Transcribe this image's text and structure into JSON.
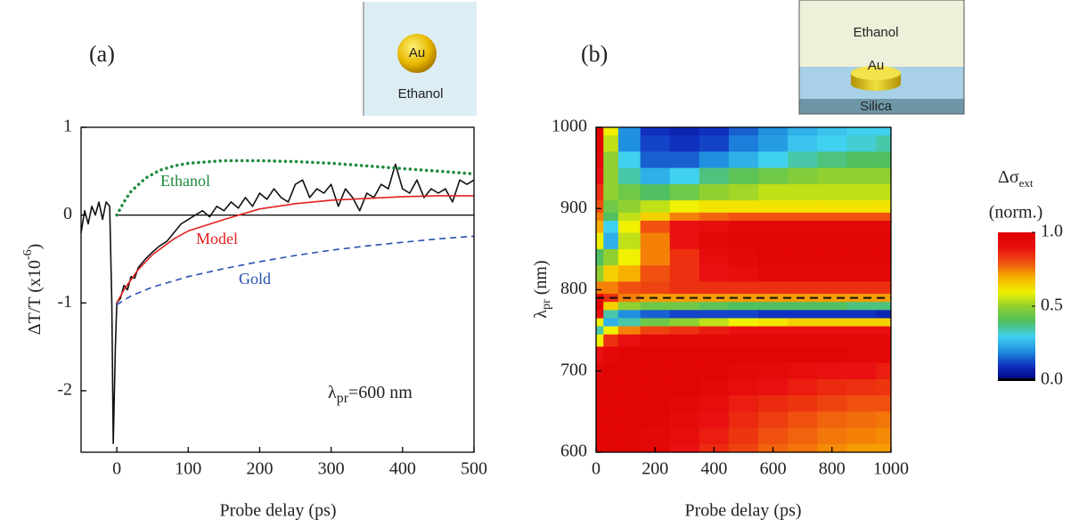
{
  "chart_data": [
    {
      "type": "line",
      "panel_label": "(a)",
      "xlabel": "Probe delay (ps)",
      "ylabel": {
        "text": "ΔT/T (x10",
        "sup": "-6",
        "end": ")"
      },
      "xlim": [
        -50,
        500
      ],
      "ylim": [
        -2.7,
        1
      ],
      "xticks": [
        0,
        100,
        200,
        300,
        400,
        500
      ],
      "yticks": [
        -2,
        -1,
        0,
        1
      ],
      "hline": 0,
      "annotation": {
        "text": "λ",
        "sub": "pr",
        "rest": "=600 nm"
      },
      "inset": {
        "particle": "Au",
        "medium": "Ethanol"
      },
      "series": [
        {
          "color": "#111111",
          "style": "solid",
          "x": [
            -50,
            -45,
            -40,
            -35,
            -30,
            -25,
            -20,
            -15,
            -10,
            -7,
            -5,
            -2,
            0,
            5,
            10,
            15,
            20,
            25,
            30,
            40,
            50,
            60,
            70,
            80,
            90,
            100,
            110,
            120,
            130,
            140,
            150,
            160,
            170,
            180,
            190,
            200,
            210,
            220,
            230,
            240,
            250,
            260,
            270,
            280,
            290,
            300,
            310,
            320,
            330,
            340,
            350,
            360,
            370,
            380,
            390,
            400,
            410,
            420,
            430,
            440,
            450,
            460,
            470,
            480,
            490,
            500
          ],
          "values": [
            -0.2,
            0.05,
            -0.1,
            0.1,
            0.0,
            0.15,
            -0.05,
            0.15,
            0.1,
            -1.0,
            -2.6,
            -1.5,
            -1.0,
            -0.95,
            -0.8,
            -0.85,
            -0.7,
            -0.72,
            -0.6,
            -0.5,
            -0.42,
            -0.35,
            -0.3,
            -0.2,
            -0.1,
            -0.05,
            0.0,
            0.05,
            -0.02,
            0.1,
            0.05,
            0.15,
            0.08,
            0.2,
            0.1,
            0.25,
            0.18,
            0.3,
            0.2,
            0.15,
            0.35,
            0.4,
            0.2,
            0.3,
            0.25,
            0.35,
            0.1,
            0.3,
            0.2,
            0.05,
            0.25,
            0.2,
            0.35,
            0.3,
            0.58,
            0.3,
            0.25,
            0.4,
            0.2,
            0.3,
            0.25,
            0.3,
            0.15,
            0.4,
            0.35,
            0.4
          ]
        },
        {
          "name": "Ethanol",
          "color": "#1e8a3c",
          "style": "dotted",
          "x": [
            0,
            10,
            20,
            40,
            60,
            80,
            100,
            150,
            200,
            250,
            300,
            350,
            400,
            450,
            500
          ],
          "values": [
            0,
            0.15,
            0.27,
            0.42,
            0.51,
            0.56,
            0.59,
            0.62,
            0.62,
            0.61,
            0.59,
            0.56,
            0.53,
            0.5,
            0.47
          ]
        },
        {
          "name": "Model",
          "color": "#e02020",
          "style": "solid",
          "x": [
            0,
            10,
            30,
            50,
            80,
            100,
            150,
            200,
            250,
            300,
            350,
            400,
            450,
            500
          ],
          "values": [
            -1.0,
            -0.85,
            -0.62,
            -0.45,
            -0.27,
            -0.18,
            -0.05,
            0.07,
            0.13,
            0.17,
            0.19,
            0.21,
            0.22,
            0.22
          ]
        },
        {
          "name": "Gold",
          "color": "#2850b0",
          "style": "dashed",
          "x": [
            0,
            20,
            50,
            100,
            150,
            200,
            250,
            300,
            350,
            400,
            450,
            500
          ],
          "values": [
            -1.02,
            -0.92,
            -0.82,
            -0.7,
            -0.61,
            -0.53,
            -0.46,
            -0.4,
            -0.35,
            -0.31,
            -0.27,
            -0.24
          ]
        }
      ]
    },
    {
      "type": "heatmap",
      "panel_label": "(b)",
      "xlabel": "Probe delay (ps)",
      "ylabel": {
        "text": "λ",
        "sub": "pr",
        "rest": " (nm)"
      },
      "xlim": [
        0,
        1000
      ],
      "ylim": [
        600,
        1000
      ],
      "xticks": [
        0,
        200,
        400,
        600,
        800,
        1000
      ],
      "yticks": [
        600,
        700,
        800,
        900,
        1000
      ],
      "hline": 790,
      "inset": {
        "medium": "Ethanol",
        "particle": "Au",
        "substrate": "Silica"
      },
      "x": [
        0,
        50,
        100,
        200,
        300,
        400,
        500,
        600,
        700,
        800,
        900,
        1000
      ],
      "y": [
        1000,
        980,
        960,
        940,
        920,
        900,
        890,
        880,
        860,
        840,
        820,
        800,
        790,
        780,
        770,
        760,
        750,
        740,
        720,
        700,
        680,
        660,
        640,
        620,
        600
      ],
      "values": [
        [
          1.0,
          0.6,
          0.2,
          0.1,
          0.08,
          0.1,
          0.15,
          0.2,
          0.25,
          0.28,
          0.3,
          0.3
        ],
        [
          1.0,
          0.55,
          0.2,
          0.12,
          0.1,
          0.12,
          0.18,
          0.22,
          0.28,
          0.3,
          0.32,
          0.35
        ],
        [
          0.95,
          0.5,
          0.3,
          0.15,
          0.15,
          0.2,
          0.25,
          0.3,
          0.35,
          0.38,
          0.4,
          0.4
        ],
        [
          0.9,
          0.5,
          0.35,
          0.25,
          0.3,
          0.38,
          0.42,
          0.45,
          0.48,
          0.5,
          0.5,
          0.5
        ],
        [
          0.85,
          0.5,
          0.45,
          0.4,
          0.45,
          0.5,
          0.52,
          0.55,
          0.55,
          0.55,
          0.55,
          0.55
        ],
        [
          0.8,
          0.45,
          0.5,
          0.55,
          0.6,
          0.62,
          0.62,
          0.62,
          0.62,
          0.62,
          0.62,
          0.62
        ],
        [
          0.75,
          0.4,
          0.55,
          0.65,
          0.75,
          0.78,
          0.8,
          0.8,
          0.8,
          0.8,
          0.8,
          0.8
        ],
        [
          0.7,
          0.3,
          0.6,
          0.8,
          0.9,
          0.92,
          0.95,
          0.95,
          0.95,
          0.95,
          0.95,
          0.95
        ],
        [
          0.6,
          0.25,
          0.55,
          0.75,
          0.9,
          0.95,
          0.97,
          0.97,
          0.97,
          0.97,
          0.97,
          0.97
        ],
        [
          0.4,
          0.5,
          0.6,
          0.75,
          0.85,
          0.92,
          0.95,
          0.97,
          0.97,
          0.97,
          0.97,
          0.97
        ],
        [
          0.5,
          0.65,
          0.7,
          0.8,
          0.85,
          0.9,
          0.92,
          0.95,
          0.95,
          0.95,
          0.95,
          0.95
        ],
        [
          0.75,
          0.75,
          0.8,
          0.82,
          0.85,
          0.85,
          0.85,
          0.85,
          0.85,
          0.85,
          0.85,
          0.85
        ],
        [
          0.95,
          0.85,
          0.75,
          0.72,
          0.72,
          0.72,
          0.72,
          0.72,
          0.72,
          0.72,
          0.72,
          0.72
        ],
        [
          1.0,
          0.65,
          0.5,
          0.45,
          0.45,
          0.42,
          0.4,
          0.4,
          0.4,
          0.4,
          0.38,
          0.38
        ],
        [
          0.9,
          0.35,
          0.2,
          0.15,
          0.12,
          0.12,
          0.12,
          0.1,
          0.1,
          0.1,
          0.1,
          0.08
        ],
        [
          0.6,
          0.25,
          0.35,
          0.45,
          0.5,
          0.55,
          0.6,
          0.62,
          0.65,
          0.65,
          0.65,
          0.65
        ],
        [
          0.35,
          0.6,
          0.75,
          0.82,
          0.85,
          0.88,
          0.9,
          0.9,
          0.9,
          0.9,
          0.9,
          0.9
        ],
        [
          0.6,
          0.85,
          0.9,
          0.95,
          0.95,
          0.95,
          0.95,
          0.95,
          0.95,
          0.95,
          0.95,
          0.95
        ],
        [
          0.9,
          0.95,
          0.97,
          0.97,
          0.97,
          0.97,
          0.97,
          0.97,
          0.97,
          0.97,
          0.95,
          0.95
        ],
        [
          0.95,
          0.97,
          0.97,
          0.97,
          0.97,
          0.97,
          0.95,
          0.93,
          0.92,
          0.9,
          0.9,
          0.88
        ],
        [
          0.97,
          0.97,
          0.97,
          0.97,
          0.97,
          0.95,
          0.92,
          0.9,
          0.88,
          0.86,
          0.85,
          0.84
        ],
        [
          0.97,
          0.97,
          0.97,
          0.97,
          0.95,
          0.92,
          0.88,
          0.86,
          0.84,
          0.82,
          0.8,
          0.8
        ],
        [
          0.97,
          0.97,
          0.97,
          0.96,
          0.93,
          0.9,
          0.86,
          0.83,
          0.8,
          0.78,
          0.77,
          0.76
        ],
        [
          0.97,
          0.97,
          0.97,
          0.95,
          0.92,
          0.88,
          0.84,
          0.8,
          0.78,
          0.76,
          0.75,
          0.74
        ],
        [
          0.97,
          0.97,
          0.97,
          0.95,
          0.9,
          0.86,
          0.82,
          0.78,
          0.76,
          0.74,
          0.72,
          0.72
        ]
      ],
      "colorbar": {
        "label": {
          "text": "Δσ",
          "sub": "ext"
        },
        "sublabel": "(norm.)",
        "lim": [
          0,
          1
        ],
        "ticks": [
          {
            "value": 0,
            "label": "0.0"
          },
          {
            "value": 0.5,
            "label": "0.5"
          },
          {
            "value": 1,
            "label": "1.0"
          }
        ],
        "colormap": [
          "#00007a",
          "#1030c0",
          "#2090e0",
          "#40d0f0",
          "#50c060",
          "#90d030",
          "#f0f000",
          "#f8b000",
          "#f05010",
          "#e81010",
          "#e00000"
        ]
      }
    }
  ]
}
